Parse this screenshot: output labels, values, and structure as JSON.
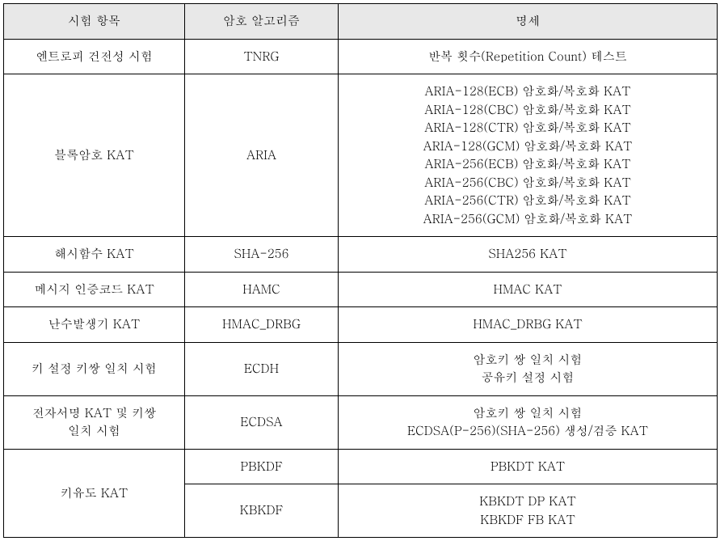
{
  "table": {
    "headers": {
      "col1": "시험 항목",
      "col2": "암호 알고리즘",
      "col3": "명세"
    },
    "rows": {
      "r1": {
        "c1": "엔트로피 건전성 시험",
        "c2": "TNRG",
        "c3": "반복 횟수(Repetition Count) 테스트"
      },
      "r2": {
        "c1": "블록암호 KAT",
        "c2": "ARIA",
        "c3": "ARIA-128(ECB) 암호화/복호화 KAT\nARIA-128(CBC) 암호화/복호화 KAT\nARIA-128(CTR) 암호화/복호화 KAT\nARIA-128(GCM) 암호화/복호화 KAT\nARIA-256(ECB) 암호화/복호화 KAT\nARIA-256(CBC) 암호화/복호화 KAT\nARIA-256(CTR) 암호화/복호화 KAT\nARIA-256(GCM) 암호화/복호화 KAT"
      },
      "r3": {
        "c1": "해시함수 KAT",
        "c2": "SHA-256",
        "c3": "SHA256 KAT"
      },
      "r4": {
        "c1": "메시지 인증코드 KAT",
        "c2": "HAMC",
        "c3": "HMAC KAT"
      },
      "r5": {
        "c1": "난수발생기 KAT",
        "c2": "HMAC_DRBG",
        "c3": "HMAC_DRBG KAT"
      },
      "r6": {
        "c1": "키 설정 키쌍 일치 시험",
        "c2": "ECDH",
        "c3": "암호키 쌍 일치 시험\n공유키 설정 시험"
      },
      "r7": {
        "c1": "전자서명 KAT 및 키쌍\n일치 시험",
        "c2": "ECDSA",
        "c3": "암호키 쌍 일치 시험\nECDSA(P-256)(SHA-256) 생성/검증 KAT"
      },
      "r8": {
        "c1": "키유도 KAT",
        "sub1": {
          "c2": "PBKDF",
          "c3": "PBKDT KAT"
        },
        "sub2": {
          "c2": "KBKDF",
          "c3": "KBKDT DP KAT\nKBKDF FB KAT"
        }
      }
    }
  },
  "colors": {
    "header_bg": "#e8e8e8",
    "border": "#000000",
    "text": "#000000",
    "background": "#ffffff"
  }
}
